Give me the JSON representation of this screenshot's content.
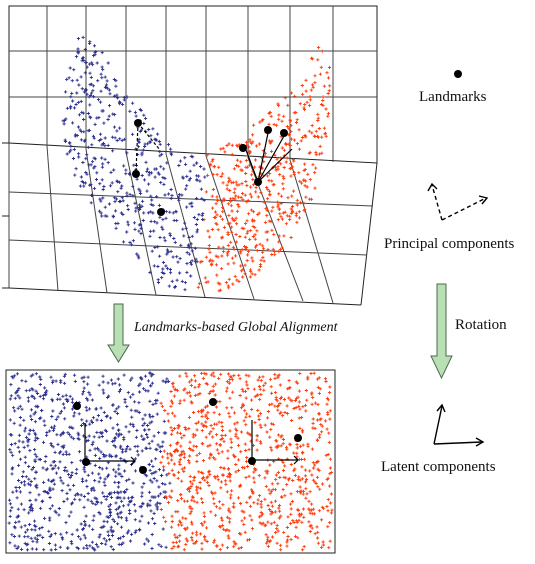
{
  "labels": {
    "landmarks": "Landmarks",
    "principal_components": "Principal components",
    "alignment": "Landmarks-based Global Alignment",
    "rotation": "Rotation",
    "latent_components": "Latent components"
  },
  "colors": {
    "blue": "#2b2e8c",
    "red": "#ff3a0a",
    "arrow_fill": "#b9dfb4",
    "arrow_stroke": "#4c6a4c",
    "ink": "#111111"
  }
}
